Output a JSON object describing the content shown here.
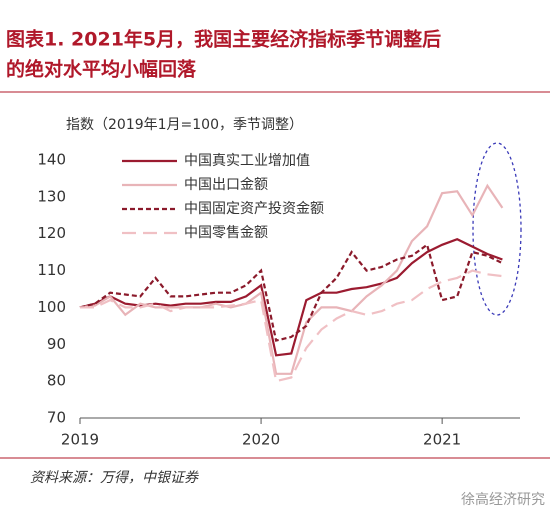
{
  "chart_data": {
    "type": "line",
    "title": [
      "图表1. 2021年5月，我国主要经济指标季节调整后",
      "的绝对水平均小幅回落"
    ],
    "y_label": "指数（2019年1月=100，季节调整）",
    "source": "资料来源：万得，中银证券",
    "watermark": "徐高经济研究",
    "x": [
      2019,
      2019.083,
      2019.167,
      2019.25,
      2019.333,
      2019.417,
      2019.5,
      2019.583,
      2019.667,
      2019.75,
      2019.833,
      2019.917,
      2020,
      2020.083,
      2020.167,
      2020.25,
      2020.333,
      2020.417,
      2020.5,
      2020.583,
      2020.667,
      2020.75,
      2020.833,
      2020.917,
      2021,
      2021.083,
      2021.167,
      2021.25,
      2021.333
    ],
    "xlim": [
      2019,
      2021.43
    ],
    "xticks": [
      2019,
      2020,
      2021
    ],
    "ylim": [
      70,
      140
    ],
    "yticks": [
      70,
      80,
      90,
      100,
      110,
      120,
      130,
      140
    ],
    "legend": "upper left",
    "series": [
      {
        "name": "中国真实工业增加值",
        "color": "#9b1b30",
        "dash": "solid",
        "values": [
          100,
          101,
          103,
          101,
          100.5,
          101,
          100.5,
          101,
          101,
          101.5,
          101.5,
          103,
          106,
          87,
          87.5,
          102,
          104,
          104,
          105,
          105.5,
          106.5,
          108,
          112,
          115,
          117,
          118.5,
          116.5,
          114.5,
          113
        ]
      },
      {
        "name": "中国出口金额",
        "color": "#e8b4b8",
        "dash": "solid",
        "values": [
          100,
          100.5,
          103,
          98,
          101,
          100,
          100,
          100,
          100,
          101,
          100,
          101,
          104,
          82,
          82,
          96,
          100,
          100,
          99,
          103,
          106,
          110,
          118,
          122,
          131,
          131.5,
          125,
          133,
          127
        ]
      },
      {
        "name": "中国固定资产投资金额",
        "color": "#8b1a2b",
        "dash": "dashed",
        "values": [
          100,
          101,
          104,
          103.5,
          103,
          108,
          103,
          103,
          103.5,
          104,
          104,
          106,
          110,
          91,
          92,
          95,
          104,
          108,
          115,
          110,
          111,
          113,
          114,
          117,
          102,
          103,
          115,
          114,
          112
        ]
      },
      {
        "name": "中国零售金额",
        "color": "#f0c0c4",
        "dash": "longdash",
        "values": [
          100,
          100,
          102,
          100,
          100,
          101,
          99,
          100,
          100,
          100,
          100.5,
          101,
          102,
          80,
          81,
          89,
          94,
          97,
          99,
          98,
          99,
          101,
          102,
          105,
          107,
          108,
          110,
          109,
          108.5
        ]
      }
    ]
  }
}
